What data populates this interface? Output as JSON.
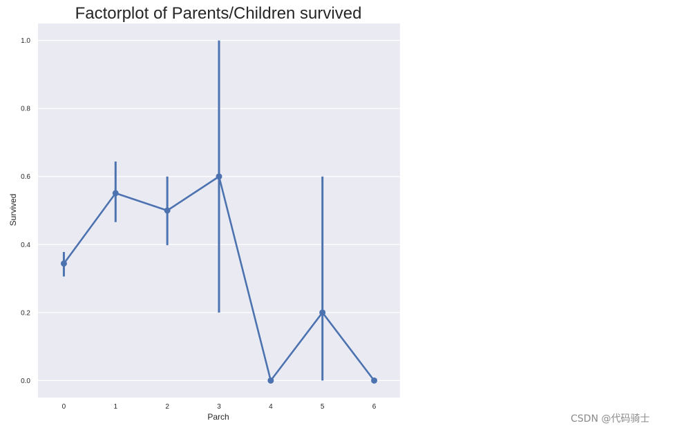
{
  "chart_data": {
    "type": "line",
    "title": "Factorplot of Parents/Children survived",
    "xlabel": "Parch",
    "ylabel": "Survived",
    "categories": [
      "0",
      "1",
      "2",
      "3",
      "4",
      "5",
      "6"
    ],
    "series": [
      {
        "values": [
          0.344,
          0.551,
          0.5,
          0.6,
          0.0,
          0.2,
          0.0
        ],
        "ci_low": [
          0.306,
          0.466,
          0.398,
          0.2,
          0.0,
          0.0,
          0.0
        ],
        "ci_high": [
          0.378,
          0.644,
          0.6,
          1.0,
          0.0,
          0.6,
          0.0
        ]
      }
    ],
    "ylim": [
      -0.05,
      1.05
    ],
    "yticks": [
      "0.0",
      "0.2",
      "0.4",
      "0.6",
      "0.8",
      "1.0"
    ],
    "grid": true,
    "legend": "none",
    "colors": {
      "line": "#4c72b0",
      "background": "#eaeaf2",
      "grid": "#ffffff"
    }
  },
  "watermark": "CSDN @代码骑士"
}
